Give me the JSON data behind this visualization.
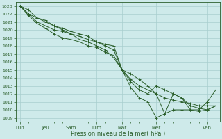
{
  "title": "",
  "xlabel": "Pression niveau de la mer( hPa )",
  "ylabel": "",
  "bg_color": "#ceeaea",
  "grid_color": "#a8cece",
  "line_color": "#2a5e2a",
  "ylim": [
    1008.5,
    1023.5
  ],
  "yticks": [
    1009,
    1010,
    1011,
    1012,
    1013,
    1014,
    1015,
    1016,
    1017,
    1018,
    1019,
    1020,
    1021,
    1022,
    1023
  ],
  "major_xtick_labels": [
    "Lun",
    "Jeu",
    "Sam",
    "Dim",
    "Mar",
    "Mer",
    "Ven"
  ],
  "major_xtick_positions": [
    0,
    3,
    6,
    9,
    12,
    16,
    22
  ],
  "xlim": [
    -0.5,
    23.5
  ],
  "series": [
    [
      1023.0,
      1022.0,
      1021.5,
      1021.2,
      1020.5,
      1020.2,
      1019.8,
      1019.5,
      1019.2,
      1018.5,
      1018.2,
      1018.0,
      1015.0,
      1014.5,
      1013.8,
      1013.0,
      1012.0,
      1011.5,
      1011.2,
      1011.0,
      1010.8,
      1010.5,
      1010.5,
      1010.5
    ],
    [
      1023.0,
      1022.0,
      1021.0,
      1020.5,
      1020.0,
      1019.8,
      1019.5,
      1019.2,
      1018.8,
      1018.5,
      1018.0,
      1017.5,
      1015.0,
      1013.5,
      1012.5,
      1012.0,
      1013.0,
      1012.5,
      1012.0,
      1011.5,
      1010.5,
      1010.2,
      1010.0,
      1010.5
    ],
    [
      1023.0,
      1021.8,
      1020.8,
      1020.2,
      1019.5,
      1019.0,
      1018.8,
      1018.5,
      1018.0,
      1017.8,
      1017.2,
      1016.8,
      1015.0,
      1012.8,
      1011.5,
      1011.0,
      1009.0,
      1009.5,
      1012.0,
      1011.5,
      1010.0,
      1009.8,
      1010.0,
      1010.5
    ],
    [
      1023.0,
      1022.5,
      1021.5,
      1021.0,
      1020.5,
      1020.0,
      1019.5,
      1018.8,
      1018.5,
      1018.0,
      1017.5,
      1016.5,
      1015.0,
      1013.8,
      1013.0,
      1012.5,
      1012.0,
      1009.5,
      1010.0,
      1010.0,
      1010.0,
      1010.0,
      1011.0,
      1012.5
    ]
  ]
}
